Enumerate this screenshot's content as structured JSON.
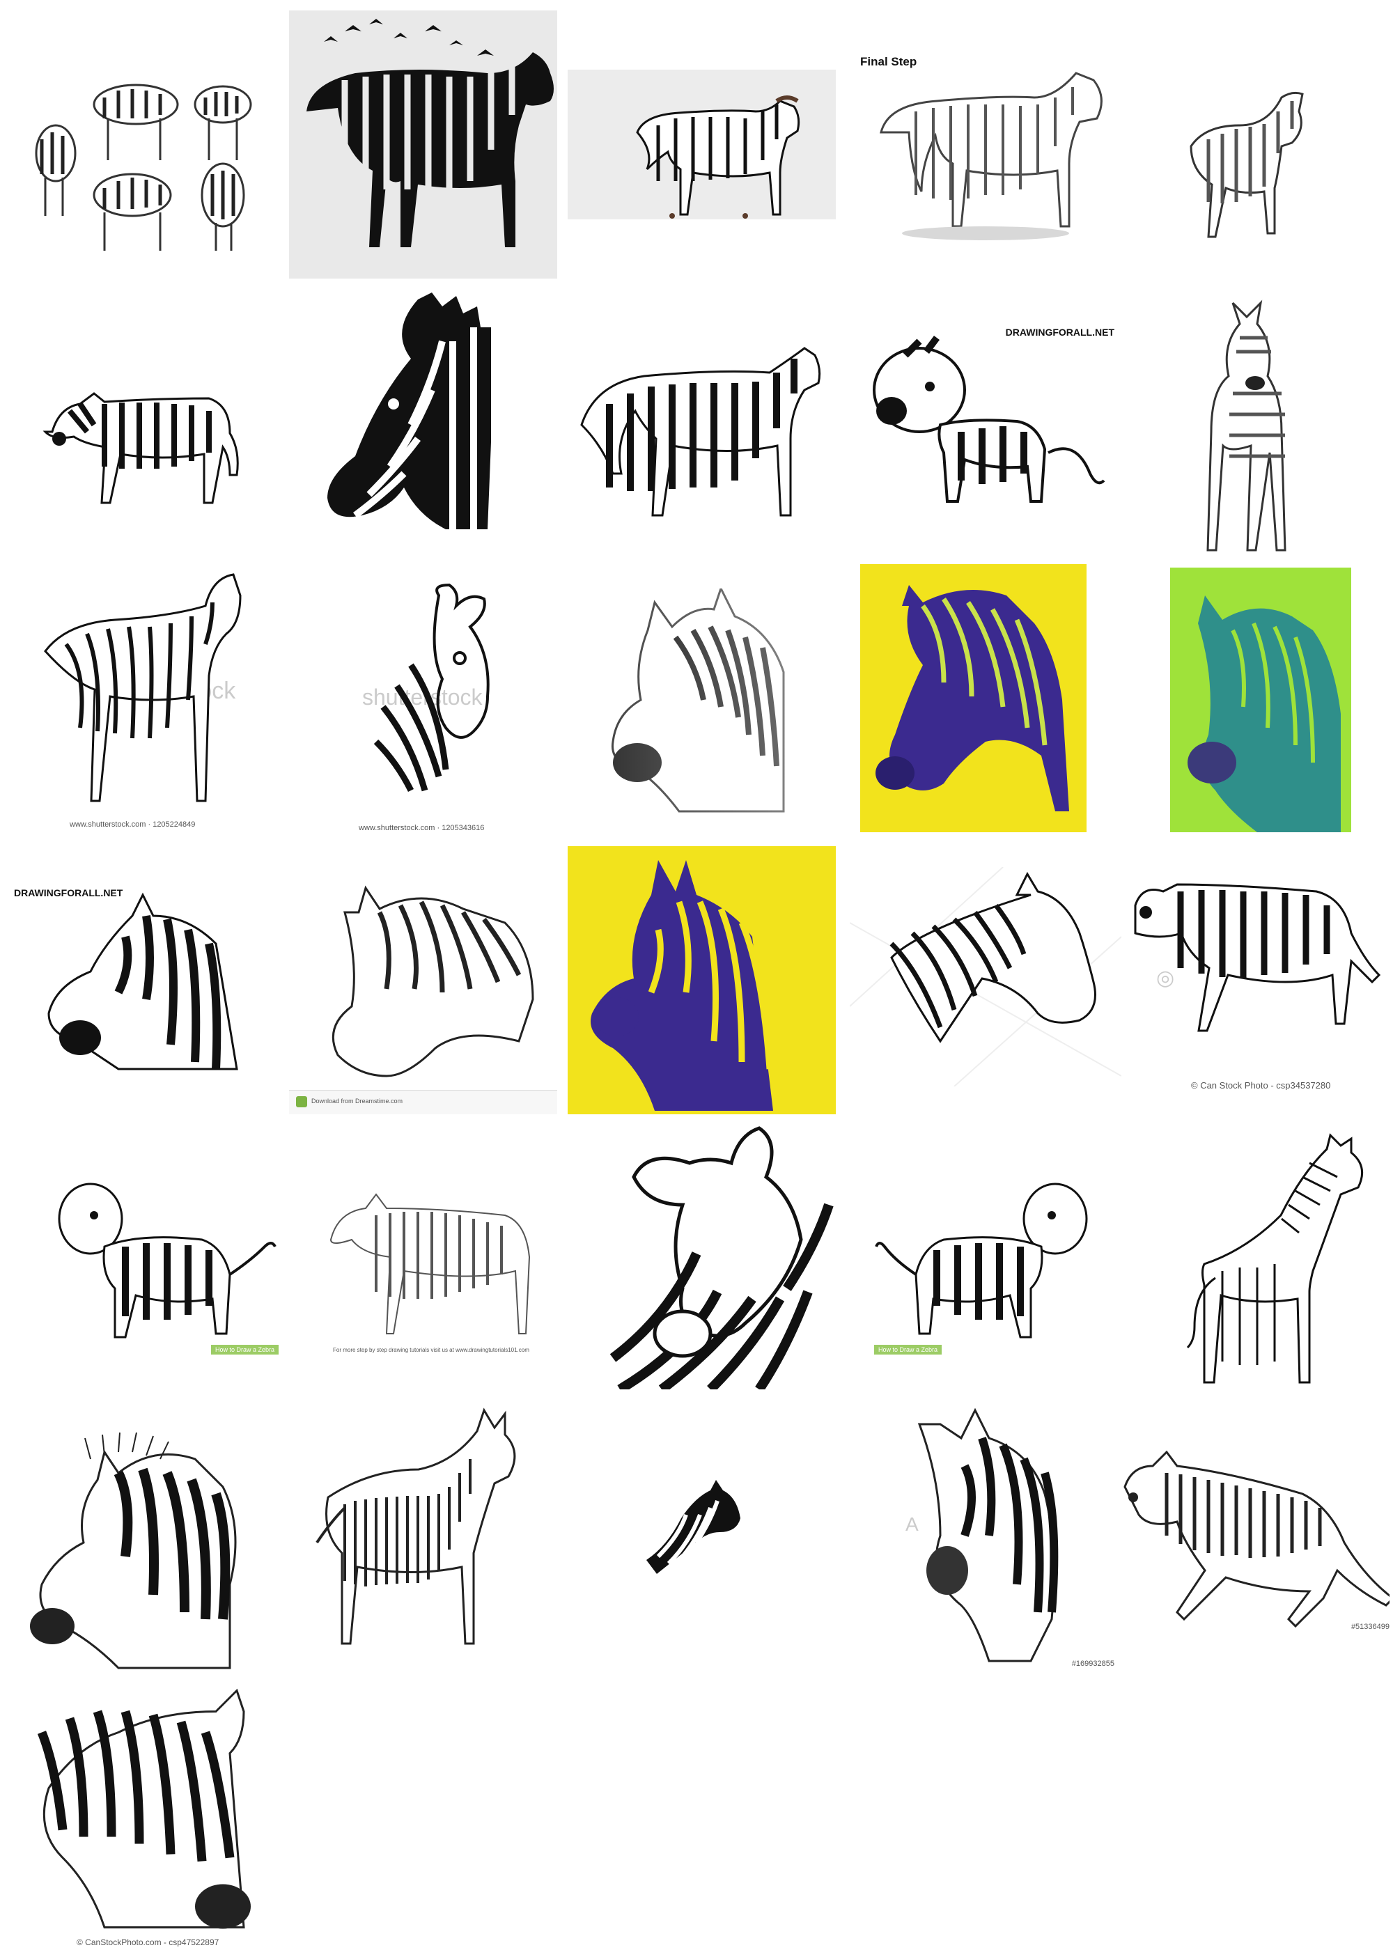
{
  "tiles": {
    "t04": {
      "caption": "Final Step"
    },
    "t09": {
      "caption": "DRAWINGFORALL.NET"
    },
    "t11": {
      "caption": "www.shutterstock.com · 1205224849",
      "watermark": "shutterstock"
    },
    "t12": {
      "caption": "www.shutterstock.com · 1205343616",
      "watermark": "shutterstock"
    },
    "t16": {
      "caption": "DRAWINGFORALL.NET"
    },
    "t17": {
      "strip_text": "Download from Dreamstime.com"
    },
    "t20": {
      "caption": "© Can Stock Photo - csp34537280"
    },
    "t21": {
      "tag": "How to Draw a Zebra"
    },
    "t22": {
      "caption": "For more step by step drawing tutorials visit us at www.drawingtutorials101.com"
    },
    "t24": {
      "tag": "How to Draw a Zebra"
    },
    "t29": {
      "caption": "#169932855"
    },
    "t30": {
      "caption": "#51336499"
    },
    "t31": {
      "caption": "© CanStockPhoto.com - csp47522897"
    }
  },
  "colors": {
    "ink": "#111111",
    "yellow": "#f2e31c",
    "purple": "#3b2a8f",
    "lime": "#9fe23a",
    "teal": "#2f8f8a",
    "light_gray_bg": "#e9e9e9"
  },
  "icons": [
    "zebra-drawing-icon"
  ]
}
